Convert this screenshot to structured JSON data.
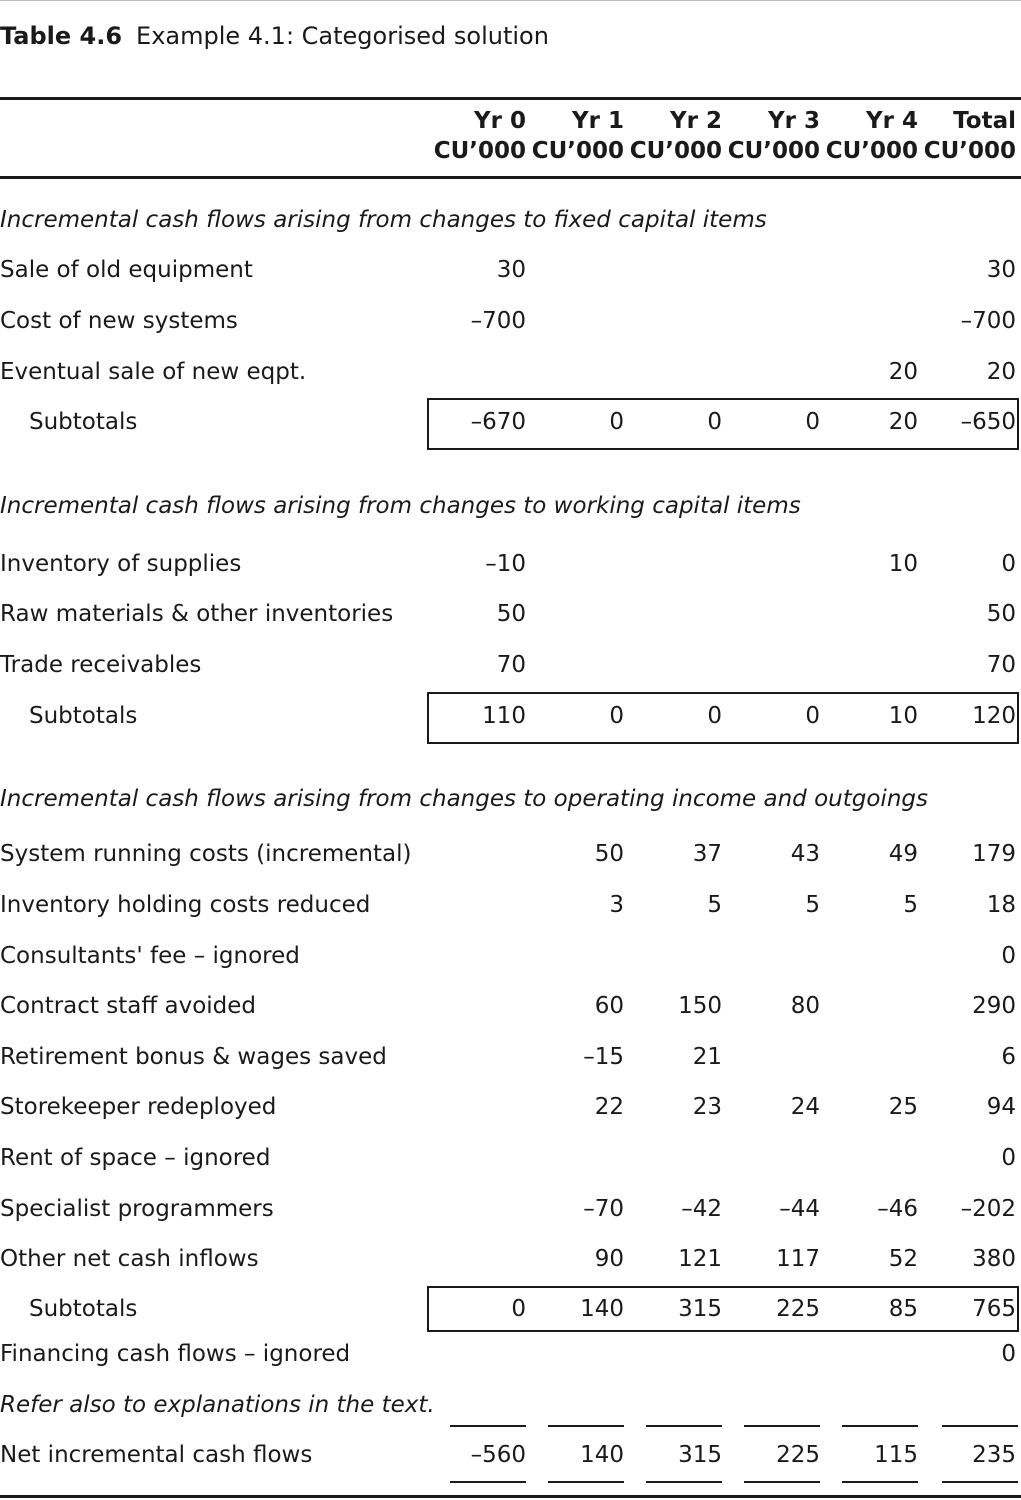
{
  "caption": {
    "number": "Table 4.6",
    "title": "Example 4.1: Categorised solution"
  },
  "columns": [
    {
      "year": "Yr 0",
      "unit": "CU’000"
    },
    {
      "year": "Yr 1",
      "unit": "CU’000"
    },
    {
      "year": "Yr 2",
      "unit": "CU’000"
    },
    {
      "year": "Yr 3",
      "unit": "CU’000"
    },
    {
      "year": "Yr 4",
      "unit": "CU’000"
    },
    {
      "year": "Total",
      "unit": "CU’000"
    }
  ],
  "sections": [
    {
      "heading": "Incremental cash flows arising from changes to fixed capital items",
      "rows": [
        {
          "label": "Sale of old equipment",
          "values": [
            "30",
            "",
            "",
            "",
            "",
            "30"
          ]
        },
        {
          "label": "Cost of new systems",
          "values": [
            "–700",
            "",
            "",
            "",
            "",
            "–700"
          ]
        },
        {
          "label": "Eventual sale of new eqpt.",
          "values": [
            "",
            "",
            "",
            "",
            "20",
            "20"
          ]
        }
      ],
      "subtotal": {
        "label": "Subtotals",
        "values": [
          "–670",
          "0",
          "0",
          "0",
          "20",
          "–650"
        ]
      }
    },
    {
      "heading": "Incremental cash flows arising from changes to working capital items",
      "rows": [
        {
          "label": "Inventory of supplies",
          "values": [
            "–10",
            "",
            "",
            "",
            "10",
            "0"
          ]
        },
        {
          "label": "Raw materials & other inventories",
          "values": [
            "50",
            "",
            "",
            "",
            "",
            "50"
          ]
        },
        {
          "label": "Trade receivables",
          "values": [
            "70",
            "",
            "",
            "",
            "",
            "70"
          ]
        }
      ],
      "subtotal": {
        "label": "Subtotals",
        "values": [
          "110",
          "0",
          "0",
          "0",
          "10",
          "120"
        ]
      }
    },
    {
      "heading": "Incremental cash flows arising from changes to operating income and outgoings",
      "rows": [
        {
          "label": "System running costs (incremental)",
          "values": [
            "",
            "50",
            "37",
            "43",
            "49",
            "179"
          ]
        },
        {
          "label": "Inventory holding costs reduced",
          "values": [
            "",
            "3",
            "5",
            "5",
            "5",
            "18"
          ]
        },
        {
          "label": "Consultants' fee – ignored",
          "values": [
            "",
            "",
            "",
            "",
            "",
            "0"
          ]
        },
        {
          "label": "Contract staff avoided",
          "values": [
            "",
            "60",
            "150",
            "80",
            "",
            "290"
          ]
        },
        {
          "label": "Retirement bonus & wages saved",
          "values": [
            "",
            "–15",
            "21",
            "",
            "",
            "6"
          ]
        },
        {
          "label": "Storekeeper redeployed",
          "values": [
            "",
            "22",
            "23",
            "24",
            "25",
            "94"
          ]
        },
        {
          "label": "Rent of space – ignored",
          "values": [
            "",
            "",
            "",
            "",
            "",
            "0"
          ]
        },
        {
          "label": "Specialist programmers",
          "values": [
            "",
            "–70",
            "–42",
            "–44",
            "–46",
            "–202"
          ]
        },
        {
          "label": "Other net cash inflows",
          "values": [
            "",
            "90",
            "121",
            "117",
            "52",
            "380"
          ]
        }
      ],
      "subtotal": {
        "label": "Subtotals",
        "values": [
          "0",
          "140",
          "315",
          "225",
          "85",
          "765"
        ]
      }
    }
  ],
  "financing": {
    "label": "Financing cash flows – ignored",
    "values": [
      "",
      "",
      "",
      "",
      "",
      "0"
    ]
  },
  "note": "Refer also to explanations in the text.",
  "net": {
    "label": "Net incremental cash flows",
    "values": [
      "–560",
      "140",
      "315",
      "225",
      "115",
      "235"
    ]
  }
}
